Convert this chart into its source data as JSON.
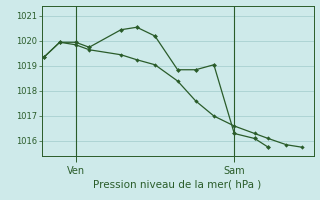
{
  "background_color": "#ceeaea",
  "grid_color": "#aed4d4",
  "line_color": "#2a5c2a",
  "marker_color": "#2a5c2a",
  "title": "Pression niveau de la mer( hPa )",
  "ylim": [
    1015.4,
    1021.4
  ],
  "yticks": [
    1016,
    1017,
    1018,
    1019,
    1020,
    1021
  ],
  "xlim": [
    0,
    12
  ],
  "ven_x": 1.5,
  "sam_x": 8.5,
  "series1_x": [
    0.1,
    0.8,
    1.5,
    2.1,
    3.5,
    4.2,
    5.0,
    6.0,
    6.8,
    7.6,
    8.5,
    9.4,
    10.0
  ],
  "series1_y": [
    1019.35,
    1019.95,
    1019.95,
    1019.75,
    1020.45,
    1020.55,
    1020.2,
    1018.85,
    1018.85,
    1019.05,
    1016.3,
    1016.1,
    1015.75
  ],
  "series2_x": [
    0.1,
    0.8,
    1.5,
    2.1,
    3.5,
    4.2,
    5.0,
    6.0,
    6.8,
    7.6,
    8.5,
    9.4,
    10.0,
    10.8,
    11.5
  ],
  "series2_y": [
    1019.35,
    1019.95,
    1019.85,
    1019.65,
    1019.45,
    1019.25,
    1019.05,
    1018.4,
    1017.6,
    1017.0,
    1016.6,
    1016.3,
    1016.1,
    1015.85,
    1015.75
  ],
  "ven_label": "Ven",
  "sam_label": "Sam",
  "ytick_fontsize": 6,
  "xtick_fontsize": 7,
  "xlabel_fontsize": 7.5
}
